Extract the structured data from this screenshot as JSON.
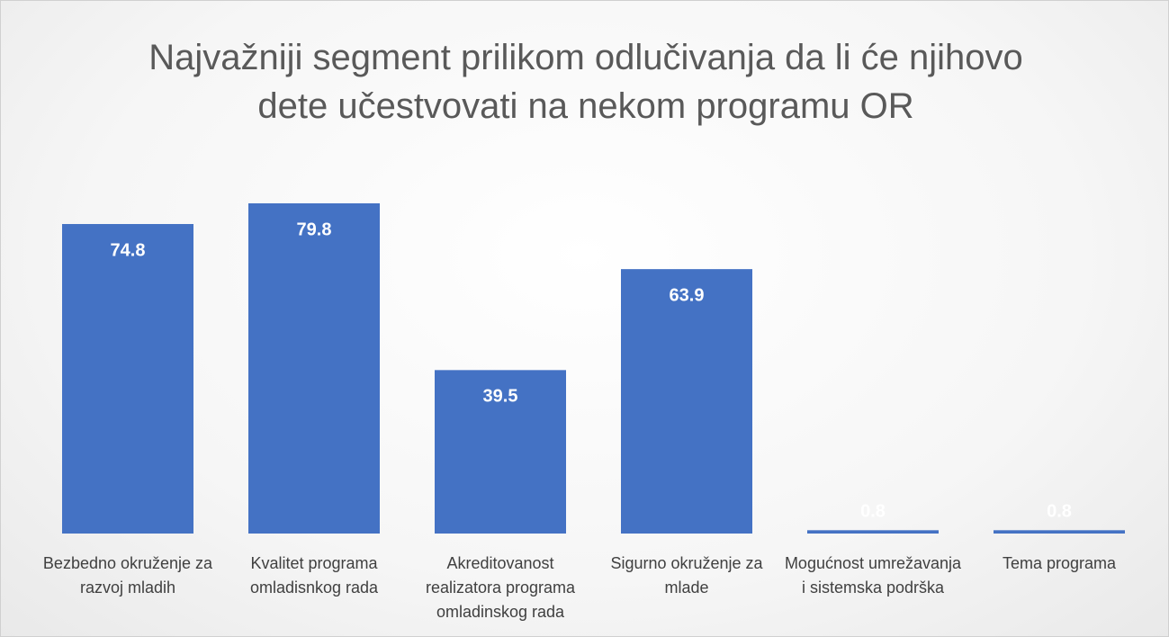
{
  "chart_data": {
    "type": "bar",
    "title": "Najvažniji segment prilikom odlučivanja da li će njihovo dete učestvovati na nekom programu OR",
    "categories": [
      "Bezbedno okruženje za razvoj mladih",
      "Kvalitet programa omladisnkog rada",
      "Akreditovanost realizatora programa omladinskog rada",
      "Sigurno okruženje za mlade",
      "Mogućnost umrežavanja i sistemska podrška",
      "Tema programa"
    ],
    "values": [
      74.8,
      79.8,
      39.5,
      63.9,
      0.8,
      0.8
    ],
    "color": "#4472c4"
  }
}
